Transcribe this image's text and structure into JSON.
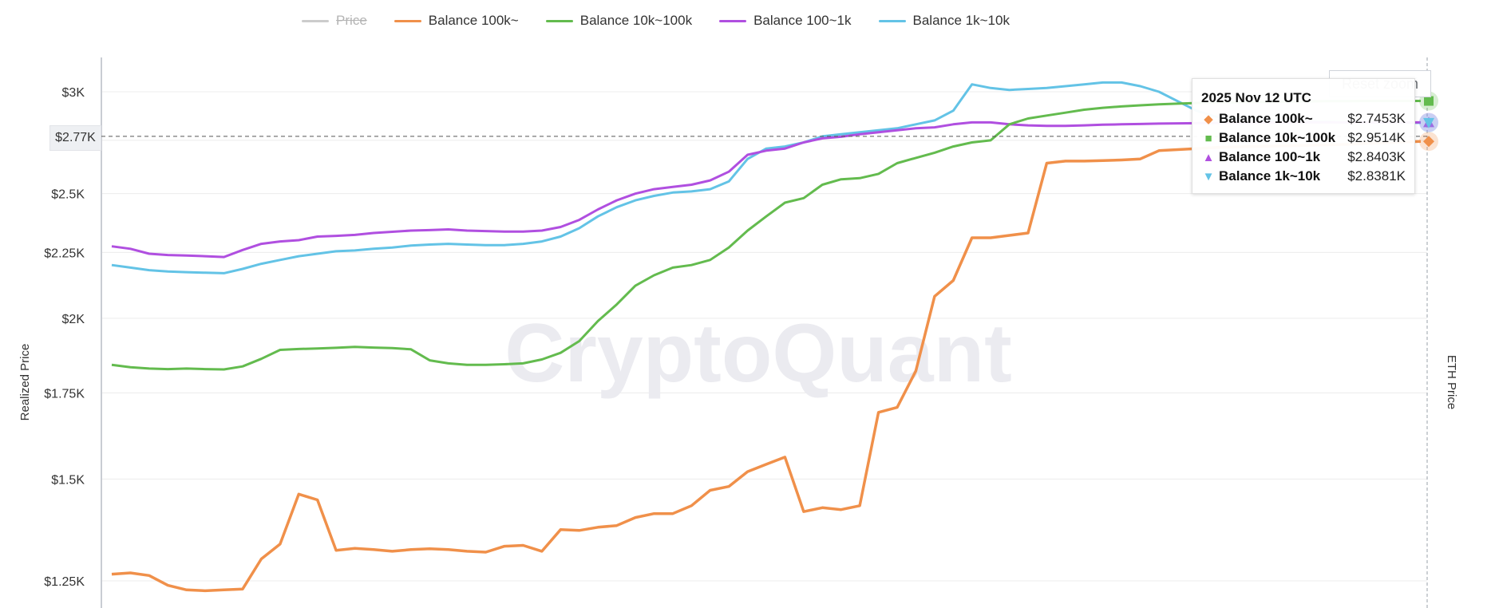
{
  "legend": {
    "items": [
      {
        "label": "Price",
        "color": "#cccccc",
        "hidden": true
      },
      {
        "label": "Balance 100k~",
        "color": "#f0904a",
        "hidden": false
      },
      {
        "label": "Balance 10k~100k",
        "color": "#63bb4e",
        "hidden": false
      },
      {
        "label": "Balance 100~1k",
        "color": "#b04fe0",
        "hidden": false
      },
      {
        "label": "Balance 1k~10k",
        "color": "#63c3e6",
        "hidden": false
      }
    ]
  },
  "reset_zoom_label": "Reset zoom",
  "watermark": "CryptoQuant",
  "crosshair": {
    "label": "$2.77K",
    "value": 2770
  },
  "tooltip": {
    "date": "2025 Nov 12 UTC",
    "rows": [
      {
        "icon": "◆",
        "color": "#f0904a",
        "name": "Balance 100k~",
        "value": "$2.7453K"
      },
      {
        "icon": "■",
        "color": "#63bb4e",
        "name": "Balance 10k~100k",
        "value": "$2.9514K"
      },
      {
        "icon": "▲",
        "color": "#b04fe0",
        "name": "Balance 100~1k",
        "value": "$2.8403K"
      },
      {
        "icon": "▼",
        "color": "#63c3e6",
        "name": "Balance 1k~10k",
        "value": "$2.8381K"
      }
    ]
  },
  "chart_data": {
    "type": "line",
    "ylabel": "Realized Price",
    "y2label": "ETH Price",
    "yscale": "log",
    "ylim": [
      1210,
      3100
    ],
    "yticks": [
      {
        "value": 3000,
        "label": "$3K"
      },
      {
        "value": 2750,
        "label": "$"
      },
      {
        "value": 2500,
        "label": "$2.5K"
      },
      {
        "value": 2250,
        "label": "$2.25K"
      },
      {
        "value": 2000,
        "label": "$2K"
      },
      {
        "value": 1750,
        "label": "$1.75K"
      },
      {
        "value": 1500,
        "label": "$1.5K"
      },
      {
        "value": 1250,
        "label": "$1.25K"
      }
    ],
    "x_count": 141,
    "series": [
      {
        "name": "Balance 100k~",
        "color": "#f0904a",
        "x": [
          0,
          2,
          4,
          6,
          8,
          10,
          12,
          14,
          16,
          18,
          20,
          22,
          24,
          26,
          28,
          30,
          32,
          34,
          36,
          38,
          40,
          42,
          44,
          46,
          48,
          50,
          52,
          54,
          56,
          58,
          60,
          62,
          64,
          66,
          68,
          70,
          72,
          74,
          76,
          78,
          80,
          82,
          84,
          86,
          88,
          90,
          92,
          94,
          96,
          98,
          100,
          102,
          104,
          106,
          108,
          110,
          112,
          114,
          116,
          118,
          120,
          122,
          124,
          126,
          128,
          130,
          132,
          134,
          136,
          138,
          140
        ],
        "y": [
          1265,
          1268,
          1262,
          1240,
          1230,
          1228,
          1230,
          1232,
          1300,
          1335,
          1460,
          1445,
          1320,
          1325,
          1322,
          1318,
          1322,
          1324,
          1322,
          1318,
          1316,
          1330,
          1332,
          1318,
          1370,
          1368,
          1376,
          1380,
          1400,
          1410,
          1410,
          1430,
          1470,
          1480,
          1520,
          1540,
          1560,
          1415,
          1425,
          1420,
          1430,
          1690,
          1705,
          1820,
          2080,
          2140,
          2310,
          2310,
          2320,
          2330,
          2640,
          2650,
          2650,
          2652,
          2655,
          2660,
          2700,
          2705,
          2710,
          2715,
          2718,
          2720,
          2722,
          2724,
          2726,
          2728,
          2730,
          2735,
          2738,
          2742,
          2745
        ]
      },
      {
        "name": "Balance 10k~100k",
        "color": "#63bb4e",
        "x": [
          0,
          2,
          4,
          6,
          8,
          10,
          12,
          14,
          16,
          18,
          20,
          22,
          24,
          26,
          28,
          30,
          32,
          34,
          36,
          38,
          40,
          42,
          44,
          46,
          48,
          50,
          52,
          54,
          56,
          58,
          60,
          62,
          64,
          66,
          68,
          70,
          72,
          74,
          76,
          78,
          80,
          82,
          84,
          86,
          88,
          90,
          92,
          94,
          96,
          98,
          100,
          102,
          104,
          106,
          108,
          110,
          112,
          114,
          116,
          118,
          120,
          122,
          124,
          126,
          128,
          130,
          132,
          134,
          136,
          138,
          140
        ],
        "y": [
          1840,
          1832,
          1828,
          1826,
          1828,
          1826,
          1825,
          1835,
          1860,
          1890,
          1893,
          1895,
          1897,
          1900,
          1898,
          1896,
          1892,
          1855,
          1845,
          1840,
          1840,
          1842,
          1845,
          1858,
          1880,
          1920,
          1990,
          2050,
          2120,
          2160,
          2190,
          2200,
          2220,
          2270,
          2340,
          2400,
          2460,
          2480,
          2540,
          2565,
          2570,
          2590,
          2640,
          2665,
          2690,
          2720,
          2740,
          2750,
          2830,
          2860,
          2875,
          2890,
          2905,
          2915,
          2922,
          2928,
          2933,
          2937,
          2940,
          2942,
          2944,
          2946,
          2947,
          2948,
          2949,
          2950,
          2950,
          2951,
          2951,
          2951,
          2951
        ]
      },
      {
        "name": "Balance 100~1k",
        "color": "#b04fe0",
        "x": [
          0,
          2,
          4,
          6,
          8,
          10,
          12,
          14,
          16,
          18,
          20,
          22,
          24,
          26,
          28,
          30,
          32,
          34,
          36,
          38,
          40,
          42,
          44,
          46,
          48,
          50,
          52,
          54,
          56,
          58,
          60,
          62,
          64,
          66,
          68,
          70,
          72,
          74,
          76,
          78,
          80,
          82,
          84,
          86,
          88,
          90,
          92,
          94,
          96,
          98,
          100,
          102,
          104,
          106,
          108,
          110,
          112,
          114,
          116,
          118,
          120,
          122,
          124,
          126,
          128,
          130,
          132,
          134,
          136,
          138,
          140
        ],
        "y": [
          2275,
          2265,
          2245,
          2240,
          2238,
          2235,
          2232,
          2260,
          2285,
          2295,
          2300,
          2315,
          2318,
          2322,
          2330,
          2335,
          2340,
          2342,
          2345,
          2340,
          2338,
          2336,
          2336,
          2340,
          2355,
          2385,
          2430,
          2470,
          2500,
          2520,
          2530,
          2540,
          2560,
          2600,
          2680,
          2700,
          2710,
          2740,
          2760,
          2768,
          2780,
          2790,
          2800,
          2810,
          2815,
          2830,
          2840,
          2840,
          2830,
          2825,
          2822,
          2822,
          2825,
          2828,
          2830,
          2832,
          2834,
          2835,
          2836,
          2837,
          2838,
          2838,
          2839,
          2839,
          2840,
          2840,
          2840,
          2840,
          2840,
          2840,
          2840
        ]
      },
      {
        "name": "Balance 1k~10k",
        "color": "#63c3e6",
        "x": [
          0,
          2,
          4,
          6,
          8,
          10,
          12,
          14,
          16,
          18,
          20,
          22,
          24,
          26,
          28,
          30,
          32,
          34,
          36,
          38,
          40,
          42,
          44,
          46,
          48,
          50,
          52,
          54,
          56,
          58,
          60,
          62,
          64,
          66,
          68,
          70,
          72,
          74,
          76,
          78,
          80,
          82,
          84,
          86,
          88,
          90,
          92,
          94,
          96,
          98,
          100,
          102,
          104,
          106,
          108,
          110,
          112,
          114,
          116,
          118,
          120,
          122,
          124,
          126,
          128,
          130,
          132,
          134,
          136,
          138,
          140
        ],
        "y": [
          2200,
          2190,
          2180,
          2175,
          2172,
          2170,
          2168,
          2185,
          2205,
          2220,
          2235,
          2245,
          2255,
          2258,
          2265,
          2270,
          2278,
          2282,
          2285,
          2282,
          2280,
          2280,
          2285,
          2295,
          2315,
          2350,
          2400,
          2440,
          2470,
          2490,
          2505,
          2510,
          2520,
          2555,
          2660,
          2710,
          2720,
          2740,
          2770,
          2780,
          2790,
          2800,
          2810,
          2830,
          2850,
          2900,
          3040,
          3020,
          3010,
          3015,
          3020,
          3030,
          3040,
          3050,
          3050,
          3030,
          3000,
          2950,
          2900,
          2870,
          2860,
          2855,
          2850,
          2847,
          2845,
          2843,
          2841,
          2840,
          2839,
          2838,
          2838
        ]
      }
    ]
  }
}
